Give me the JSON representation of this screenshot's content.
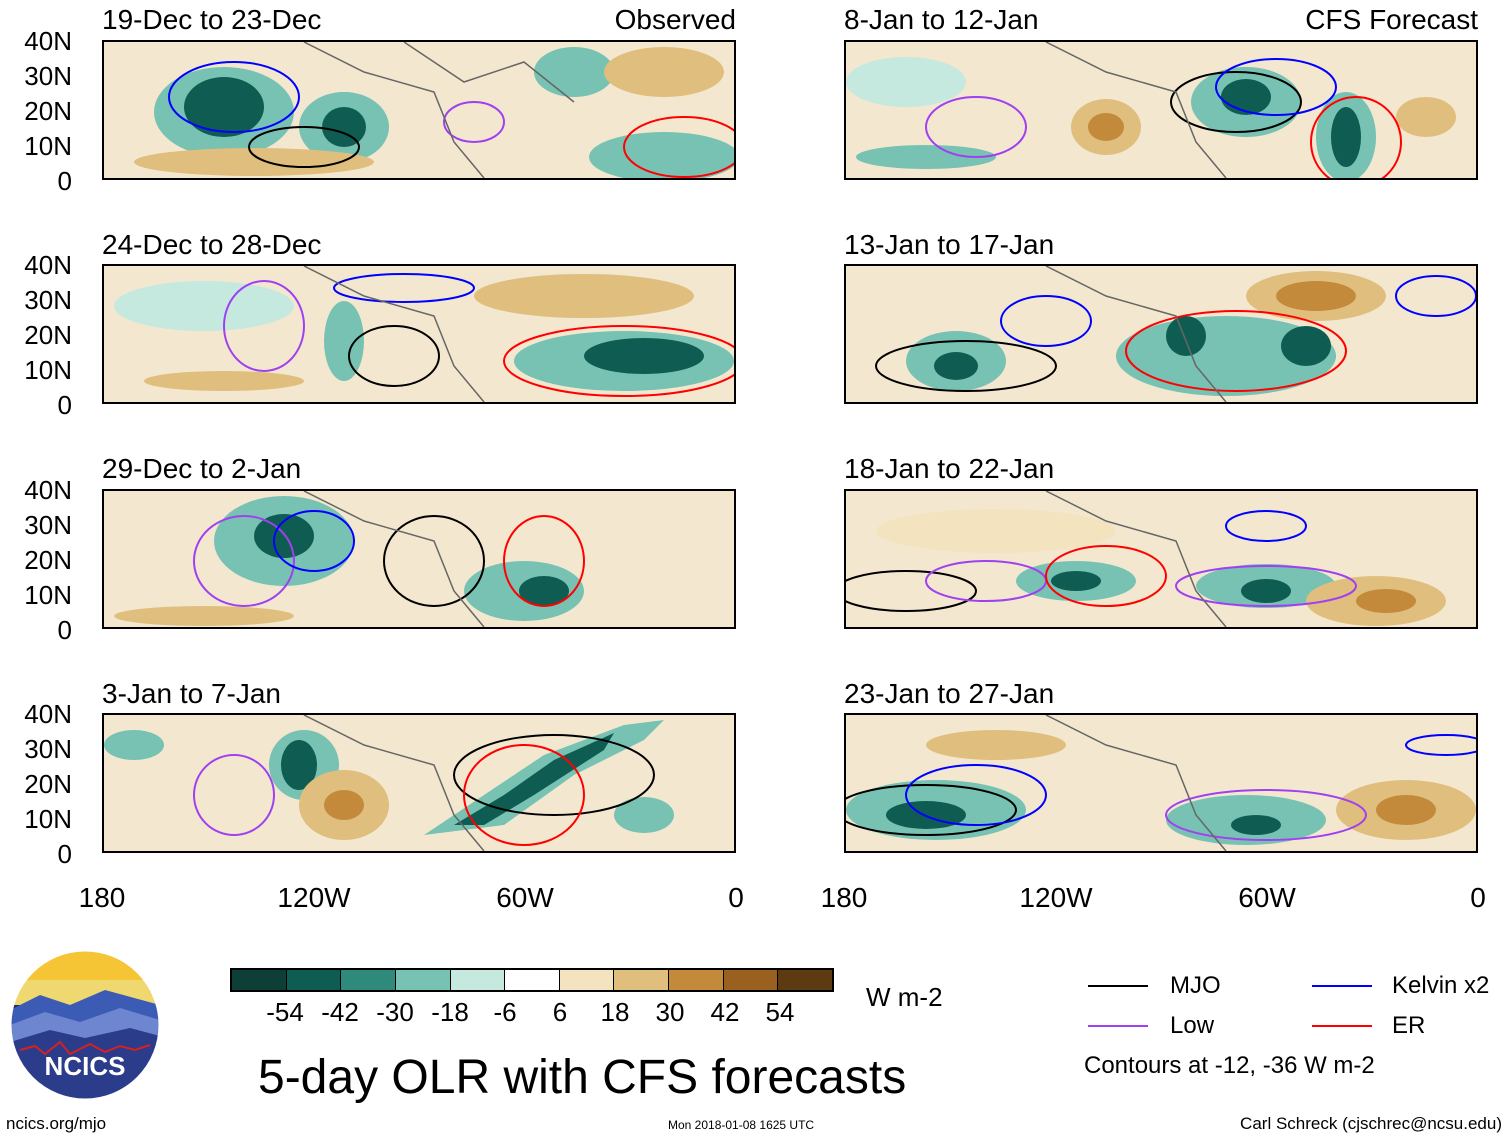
{
  "panels": {
    "observed": [
      {
        "title": "19-Dec to 23-Dec",
        "label": "Observed"
      },
      {
        "title": "24-Dec to 28-Dec",
        "label": ""
      },
      {
        "title": "29-Dec to 2-Jan",
        "label": ""
      },
      {
        "title": "3-Jan to 7-Jan",
        "label": ""
      }
    ],
    "forecast": [
      {
        "title": "8-Jan to 12-Jan",
        "label": "CFS Forecast"
      },
      {
        "title": "13-Jan to 17-Jan",
        "label": ""
      },
      {
        "title": "18-Jan to 22-Jan",
        "label": ""
      },
      {
        "title": "23-Jan to 27-Jan",
        "label": ""
      }
    ]
  },
  "axes": {
    "lat_ticks": [
      "40N",
      "30N",
      "20N",
      "10N",
      "0"
    ],
    "lon_ticks": [
      "180",
      "120W",
      "60W",
      "0"
    ]
  },
  "colorbar": {
    "labels": [
      "-54",
      "-42",
      "-30",
      "-18",
      "-6",
      "6",
      "18",
      "30",
      "42",
      "54"
    ],
    "colors": [
      "#0d3f36",
      "#0f5d52",
      "#2f8a7c",
      "#77c2b3",
      "#c5e8df",
      "#ffffff",
      "#f3e3bf",
      "#e0be7e",
      "#c48a3c",
      "#99601f",
      "#5e3a12"
    ],
    "units": "W m-2"
  },
  "legend": {
    "items": [
      {
        "label": "MJO",
        "color": "#000000"
      },
      {
        "label": "Kelvin x2",
        "color": "#0000ff"
      },
      {
        "label": "Low",
        "color": "#a040f0"
      },
      {
        "label": "ER",
        "color": "#ff0000"
      }
    ],
    "note": "Contours at -12, -36 W m-2"
  },
  "logo": {
    "text": "NCICS"
  },
  "title": "5-day OLR with CFS forecasts",
  "footer": {
    "url": "ncics.org/mjo",
    "timestamp": "Mon 2018-01-08 1625 UTC",
    "credit": "Carl Schreck (cjschrec@ncsu.edu)"
  }
}
